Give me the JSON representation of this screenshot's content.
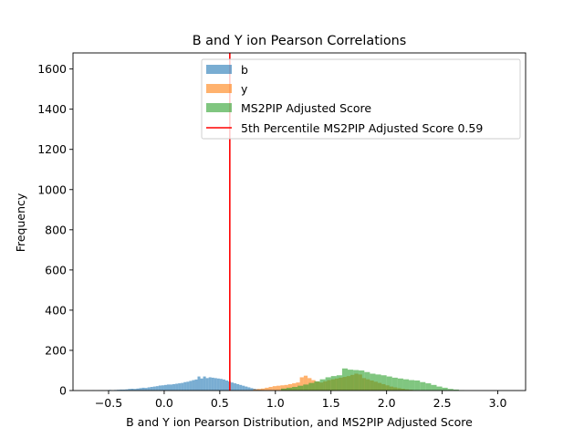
{
  "chart_data": {
    "type": "histogram",
    "title": "B and Y ion Pearson Correlations",
    "xlabel": "B and Y ion Pearson Distribution, and MS2PIP Adjusted Score",
    "ylabel": "Frequency",
    "xlim": [
      -0.82,
      3.25
    ],
    "ylim": [
      0,
      1680
    ],
    "xticks": [
      -0.5,
      0.0,
      0.5,
      1.0,
      1.5,
      2.0,
      2.5,
      3.0
    ],
    "xtick_labels": [
      "−0.5",
      "0.0",
      "0.5",
      "1.0",
      "1.5",
      "2.0",
      "2.5",
      "3.0"
    ],
    "yticks": [
      0,
      200,
      400,
      600,
      800,
      1000,
      1200,
      1400,
      1600
    ],
    "ytick_labels": [
      "0",
      "200",
      "400",
      "600",
      "800",
      "1000",
      "1200",
      "1400",
      "1600"
    ],
    "grid": false,
    "legend_position": "top-right",
    "series": [
      {
        "name": "b",
        "color": "#1f77b4",
        "alpha": 0.6,
        "bin_start": -0.65,
        "bin_width": 0.025,
        "counts": [
          1,
          0,
          1,
          2,
          1,
          2,
          3,
          2,
          3,
          4,
          5,
          5,
          6,
          8,
          9,
          8,
          10,
          12,
          14,
          13,
          16,
          18,
          20,
          22,
          25,
          26,
          28,
          30,
          30,
          32,
          34,
          36,
          38,
          42,
          44,
          48,
          52,
          55,
          70,
          60,
          70,
          62,
          66,
          64,
          62,
          60,
          58,
          55,
          50,
          45,
          40,
          36,
          32,
          28,
          24,
          20,
          16,
          12,
          9,
          6,
          4,
          3,
          2,
          1,
          1
        ]
      },
      {
        "name": "y",
        "color": "#ff7f0e",
        "alpha": 0.6,
        "bin_start": 0.8,
        "bin_width": 0.035,
        "counts": [
          6,
          8,
          10,
          14,
          18,
          22,
          24,
          26,
          28,
          32,
          36,
          40,
          66,
          74,
          62,
          52,
          44,
          40,
          46,
          52,
          56,
          60,
          64,
          68,
          72,
          78,
          84,
          80,
          62,
          56,
          50,
          44,
          38,
          32,
          26,
          20,
          16,
          12,
          9,
          6,
          4,
          2
        ]
      },
      {
        "name": "MS2PIP Adjusted Score",
        "color": "#2ca02c",
        "alpha": 0.6,
        "bin_start": 1.05,
        "bin_width": 0.05,
        "counts": [
          10,
          14,
          18,
          24,
          30,
          38,
          46,
          56,
          66,
          72,
          76,
          110,
          104,
          102,
          100,
          92,
          84,
          80,
          76,
          70,
          64,
          60,
          56,
          52,
          50,
          42,
          36,
          28,
          20,
          14,
          8,
          5,
          2
        ]
      }
    ],
    "reference_line": {
      "name": "5th Percentile  MS2PIP Adjusted Score 0.59",
      "x": 0.59,
      "color": "#ff0000"
    }
  }
}
